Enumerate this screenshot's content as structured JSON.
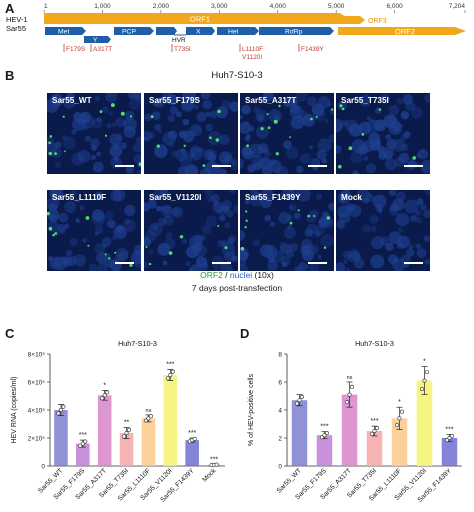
{
  "panels": {
    "a": "A",
    "b": "B",
    "c": "C",
    "d": "D"
  },
  "genome": {
    "name_line1": "HEV-1",
    "name_line2": "Sar55",
    "ticks": [
      {
        "label": "1",
        "pos": 1
      },
      {
        "label": "1,000",
        "pos": 1000
      },
      {
        "label": "2,000",
        "pos": 2000
      },
      {
        "label": "3,000",
        "pos": 3000
      },
      {
        "label": "4,000",
        "pos": 4000
      },
      {
        "label": "5,000",
        "pos": 5000
      },
      {
        "label": "6,000",
        "pos": 6000
      },
      {
        "label": "7,204",
        "pos": 7204
      }
    ],
    "orf1_label": "ORF1",
    "orf2_label": "ORF2",
    "orf3_label": "ORF3",
    "domains": [
      "Met",
      "Y",
      "PCP",
      "X",
      "Hel",
      "RdRp"
    ],
    "hvr_label": "HVR",
    "mutations": [
      "F179S",
      "A317T",
      "T735I",
      "L1110F",
      "V1120I",
      "F1439Y"
    ]
  },
  "microscopy": {
    "title": "Huh7-S10-3",
    "images": [
      "Sar55_WT",
      "Sar55_F179S",
      "Sar55_A317T",
      "Sar55_T735I",
      "Sar55_L1110F",
      "Sar55_V1120I",
      "Sar55_F1439Y",
      "Mock"
    ],
    "caption_orf2": "ORF2",
    "caption_sep": " / ",
    "caption_nuclei": "nuclei",
    "caption_mag": " (10x)",
    "caption_time": "7 days post-transfection"
  },
  "chart_data": [
    {
      "type": "bar",
      "title": "Huh7-S10-3",
      "ylabel": "HEV RNA (copies/ml)",
      "xlabel": "",
      "ylim": [
        0,
        800000
      ],
      "yticks": [
        0,
        200000,
        400000,
        600000,
        800000
      ],
      "ytick_labels": [
        "0",
        "2×10⁵",
        "4×10⁵",
        "6×10⁵",
        "8×10⁵"
      ],
      "categories": [
        "Sar55_WT",
        "Sar55_F179S",
        "Sar55_A317T",
        "Sar55_T735I",
        "Sar55_L1110F",
        "Sar55_V1120I",
        "Sar55_F1439Y",
        "Mock"
      ],
      "values": [
        400000,
        160000,
        505000,
        235000,
        340000,
        650000,
        185000,
        8000
      ],
      "errors": [
        40000,
        25000,
        35000,
        40000,
        25000,
        40000,
        15000,
        3000
      ],
      "significance": [
        "",
        "***",
        "*",
        "**",
        "ns",
        "***",
        "***",
        "***"
      ],
      "colors": [
        "#7b7fce",
        "#c07cd6",
        "#d884c8",
        "#f4a6a6",
        "#fbc889",
        "#f5f36b",
        "#6d6fd1",
        "#999999"
      ]
    },
    {
      "type": "bar",
      "title": "Huh7-S10-3",
      "ylabel": "% of HEV-positive cells",
      "xlabel": "",
      "ylim": [
        0,
        8
      ],
      "yticks": [
        0,
        2,
        4,
        6,
        8
      ],
      "ytick_labels": [
        "0",
        "2",
        "4",
        "6",
        "8"
      ],
      "categories": [
        "Sar55_WT",
        "Sar55_F179S",
        "Sar55_A317T",
        "Sar55_T735I",
        "Sar55_L1110F",
        "Sar55_V1120I",
        "Sar55_F1439Y"
      ],
      "values": [
        4.7,
        2.2,
        5.1,
        2.5,
        3.4,
        6.1,
        2.0
      ],
      "errors": [
        0.4,
        0.25,
        0.9,
        0.35,
        0.8,
        1.0,
        0.25
      ],
      "significance": [
        "",
        "***",
        "ns",
        "***",
        "*",
        "*",
        "***"
      ],
      "colors": [
        "#7b7fce",
        "#c07cd6",
        "#d884c8",
        "#f4a6a6",
        "#fbc889",
        "#f5f36b",
        "#6d6fd1"
      ]
    }
  ]
}
